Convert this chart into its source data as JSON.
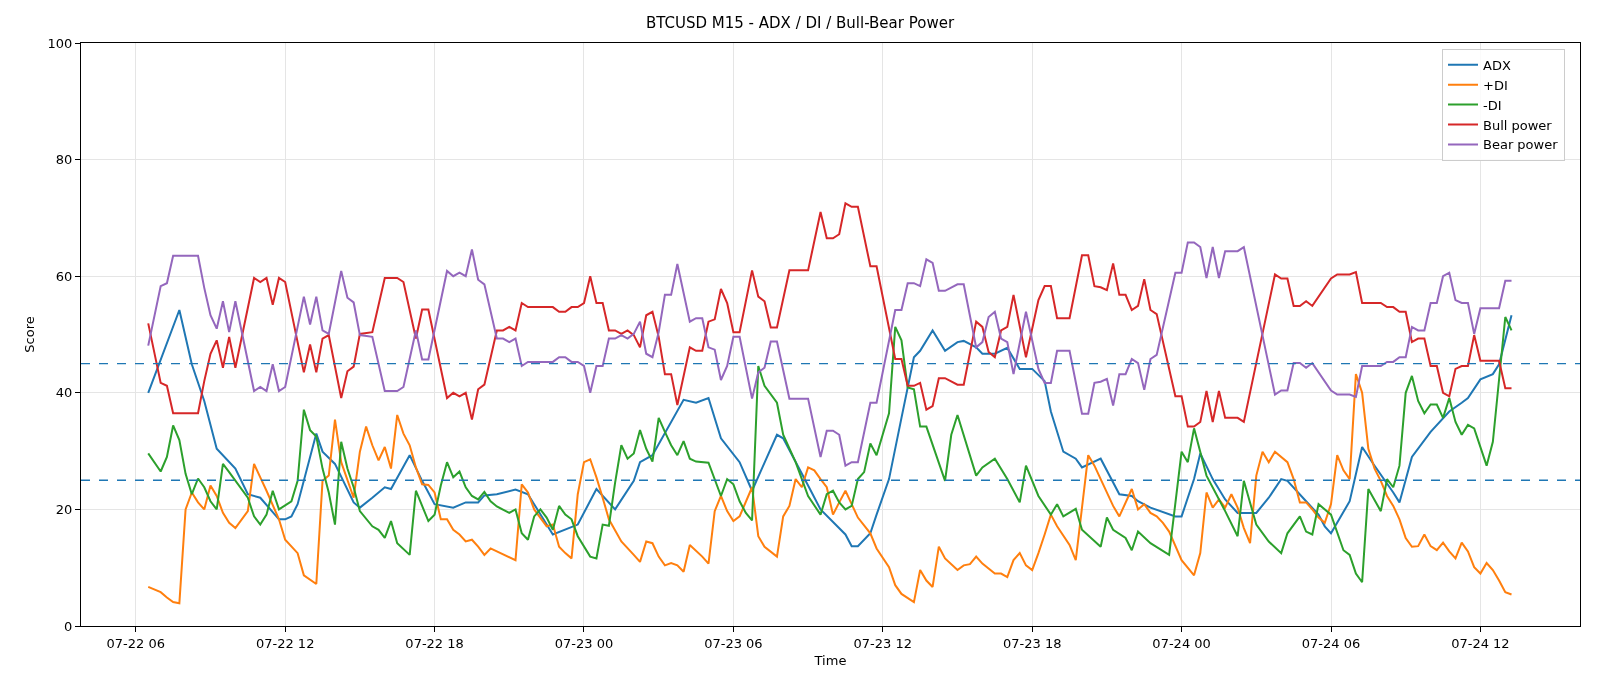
{
  "chart_data": {
    "type": "line",
    "title": "BTCUSD M15 - ADX / DI / Bull-Bear Power",
    "xlabel": "Time",
    "ylabel": "Score",
    "xlim": [
      "--07-22T03:48",
      "--07-24T16:00"
    ],
    "xticks": [
      {
        "value": "--07-22T06:00",
        "label": "07-22 06"
      },
      {
        "value": "--07-22T12:00",
        "label": "07-22 12"
      },
      {
        "value": "--07-22T18:00",
        "label": "07-22 18"
      },
      {
        "value": "--07-23T00:00",
        "label": "07-23 00"
      },
      {
        "value": "--07-23T06:00",
        "label": "07-23 06"
      },
      {
        "value": "--07-23T12:00",
        "label": "07-23 12"
      },
      {
        "value": "--07-23T18:00",
        "label": "07-23 18"
      },
      {
        "value": "--07-24T00:00",
        "label": "07-24 00"
      },
      {
        "value": "--07-24T06:00",
        "label": "07-24 06"
      },
      {
        "value": "--07-24T12:00",
        "label": "07-24 12"
      }
    ],
    "ylim": [
      0,
      100
    ],
    "yticks": [
      0,
      20,
      40,
      60,
      80,
      100
    ],
    "grid": true,
    "legend": "top right",
    "line_style": "solid",
    "ref_lines": [
      {
        "axis": "y",
        "value": 45,
        "color": "#1f77b4",
        "line_style": "dashed"
      },
      {
        "axis": "y",
        "value": 25,
        "color": "#1f77b4",
        "line_style": "dashed"
      }
    ],
    "x": [
      "--07-22T06:30",
      "--07-22T07:00",
      "--07-22T07:15",
      "--07-22T07:30",
      "--07-22T08:30",
      "--07-22T08:45",
      "--07-22T09:00",
      "--07-22T09:15",
      "--07-22T09:30",
      "--07-22T09:45",
      "--07-22T10:00",
      "--07-22T10:45",
      "--07-22T11:00",
      "--07-22T11:15",
      "--07-22T11:30",
      "--07-22T11:45",
      "--07-22T12:00",
      "--07-22T12:45",
      "--07-22T13:00",
      "--07-22T13:15",
      "--07-22T13:30",
      "--07-22T13:45",
      "--07-22T14:15",
      "--07-22T14:30",
      "--07-22T14:45",
      "--07-22T15:00",
      "--07-22T15:30",
      "--07-22T16:00",
      "--07-22T16:30",
      "--07-22T16:45",
      "--07-22T17:15",
      "--07-22T17:30",
      "--07-22T17:45",
      "--07-22T18:30",
      "--07-22T18:45",
      "--07-22T19:00",
      "--07-22T19:15",
      "--07-22T19:30",
      "--07-22T19:45",
      "--07-22T20:00",
      "--07-22T20:30",
      "--07-22T20:45",
      "--07-22T21:00",
      "--07-22T21:15",
      "--07-22T21:30",
      "--07-22T21:45",
      "--07-22T22:45",
      "--07-22T23:00",
      "--07-22T23:15",
      "--07-22T23:30",
      "--07-22T23:45",
      "--07-23T00:00",
      "--07-23T00:15",
      "--07-23T00:30",
      "--07-23T00:45",
      "--07-23T01:00",
      "--07-23T01:15",
      "--07-23T01:30",
      "--07-23T01:45",
      "--07-23T02:00",
      "--07-23T02:15",
      "--07-23T02:30",
      "--07-23T02:45",
      "--07-23T03:00",
      "--07-23T03:15",
      "--07-23T03:30",
      "--07-23T03:45",
      "--07-23T04:15",
      "--07-23T04:30",
      "--07-23T04:45",
      "--07-23T05:00",
      "--07-23T05:15",
      "--07-23T05:30",
      "--07-23T05:45",
      "--07-23T06:00",
      "--07-23T06:15",
      "--07-23T06:45",
      "--07-23T07:00",
      "--07-23T07:15",
      "--07-23T07:30",
      "--07-23T07:45",
      "--07-23T08:15",
      "--07-23T09:00",
      "--07-23T09:30",
      "--07-23T09:45",
      "--07-23T10:00",
      "--07-23T10:15",
      "--07-23T10:30",
      "--07-23T10:45",
      "--07-23T11:00",
      "--07-23T11:30",
      "--07-23T11:45",
      "--07-23T12:30",
      "--07-23T12:45",
      "--07-23T13:00",
      "--07-23T13:15",
      "--07-23T13:30",
      "--07-23T13:45",
      "--07-23T14:00",
      "--07-23T14:15",
      "--07-23T14:30",
      "--07-23T15:00",
      "--07-23T15:15",
      "--07-23T15:45",
      "--07-23T16:00",
      "--07-23T16:15",
      "--07-23T16:30",
      "--07-23T16:45",
      "--07-23T17:00",
      "--07-23T17:15",
      "--07-23T17:45",
      "--07-23T18:15",
      "--07-23T18:30",
      "--07-23T18:45",
      "--07-23T19:00",
      "--07-23T19:30",
      "--07-23T20:00",
      "--07-23T20:15",
      "--07-23T20:30",
      "--07-23T20:45",
      "--07-23T21:00",
      "--07-23T21:15",
      "--07-23T21:30",
      "--07-23T21:45",
      "--07-23T22:00",
      "--07-23T22:15",
      "--07-23T22:30",
      "--07-23T22:45",
      "--07-23T23:00",
      "--07-23T23:45",
      "--07-24T00:00",
      "--07-24T00:15",
      "--07-24T00:30",
      "--07-24T00:45",
      "--07-24T01:00",
      "--07-24T01:15",
      "--07-24T01:30",
      "--07-24T01:45",
      "--07-24T02:15",
      "--07-24T02:30",
      "--07-24T03:45",
      "--07-24T04:00",
      "--07-24T04:15",
      "--07-24T04:30",
      "--07-24T04:45",
      "--07-24T05:00",
      "--07-24T05:15",
      "--07-24T06:00",
      "--07-24T06:15",
      "--07-24T06:45",
      "--07-24T07:00",
      "--07-24T07:15",
      "--07-24T08:00",
      "--07-24T08:15",
      "--07-24T08:30",
      "--07-24T08:45",
      "--07-24T09:00",
      "--07-24T09:15",
      "--07-24T09:30",
      "--07-24T09:45",
      "--07-24T10:00",
      "--07-24T10:15",
      "--07-24T10:30",
      "--07-24T10:45",
      "--07-24T11:00",
      "--07-24T11:15",
      "--07-24T11:30",
      "--07-24T11:45",
      "--07-24T12:00",
      "--07-24T12:45",
      "--07-24T13:00",
      "--07-24T13:15"
    ],
    "series": [
      {
        "name": "ADX",
        "color": "#1f77b4",
        "x": [
          "--07-22T06:30",
          "--07-22T07:45",
          "--07-22T08:15",
          "--07-22T08:45",
          "--07-22T09:15",
          "--07-22T10:00",
          "--07-22T10:30",
          "--07-22T11:00",
          "--07-22T11:45",
          "--07-22T12:00",
          "--07-22T12:15",
          "--07-22T12:30",
          "--07-22T13:15",
          "--07-22T13:30",
          "--07-22T14:00",
          "--07-22T14:45",
          "--07-22T15:00",
          "--07-22T15:30",
          "--07-22T16:00",
          "--07-22T16:15",
          "--07-22T17:00",
          "--07-22T17:30",
          "--07-22T18:00",
          "--07-22T18:45",
          "--07-22T19:15",
          "--07-22T19:45",
          "--07-22T20:00",
          "--07-22T20:30",
          "--07-22T21:15",
          "--07-22T21:45",
          "--07-22T22:45",
          "--07-22T23:45",
          "--07-23T00:30",
          "--07-23T01:15",
          "--07-23T02:00",
          "--07-23T02:15",
          "--07-23T02:45",
          "--07-23T04:00",
          "--07-23T04:30",
          "--07-23T05:00",
          "--07-23T05:30",
          "--07-23T06:15",
          "--07-23T06:45",
          "--07-23T07:45",
          "--07-23T08:00",
          "--07-23T09:00",
          "--07-23T09:30",
          "--07-23T10:30",
          "--07-23T10:45",
          "--07-23T11:00",
          "--07-23T11:30",
          "--07-23T11:45",
          "--07-23T12:15",
          "--07-23T12:45",
          "--07-23T13:15",
          "--07-23T13:30",
          "--07-23T14:00",
          "--07-23T14:30",
          "--07-23T15:00",
          "--07-23T15:15",
          "--07-23T15:45",
          "--07-23T16:00",
          "--07-23T16:30",
          "--07-23T17:00",
          "--07-23T17:30",
          "--07-23T18:00",
          "--07-23T18:30",
          "--07-23T18:45",
          "--07-23T19:15",
          "--07-23T19:45",
          "--07-23T20:00",
          "--07-23T20:45",
          "--07-23T21:30",
          "--07-23T22:00",
          "--07-23T22:15",
          "--07-23T22:45",
          "--07-23T23:45",
          "--07-24T00:00",
          "--07-24T00:30",
          "--07-24T00:45",
          "--07-24T01:15",
          "--07-24T01:45",
          "--07-24T02:15",
          "--07-24T02:30",
          "--07-24T03:00",
          "--07-24T03:30",
          "--07-24T04:00",
          "--07-24T04:15",
          "--07-24T05:00",
          "--07-24T05:30",
          "--07-24T05:45",
          "--07-24T06:00",
          "--07-24T06:45",
          "--07-24T07:15",
          "--07-24T07:45",
          "--07-24T08:30",
          "--07-24T08:45",
          "--07-24T09:15",
          "--07-24T10:00",
          "--07-24T10:45",
          "--07-24T11:15",
          "--07-24T11:30",
          "--07-24T12:00",
          "--07-24T12:30",
          "--07-24T12:45",
          "--07-24T13:15"
        ],
        "values": [
          40,
          54.2,
          44.9,
          38.6,
          30.4,
          27,
          22.6,
          22,
          18.3,
          18.3,
          18.8,
          20.9,
          33,
          29.9,
          27.8,
          21.2,
          20.3,
          22,
          23.8,
          23.5,
          29.3,
          24.9,
          20.9,
          20.3,
          21.2,
          21.2,
          22.4,
          22.6,
          23.4,
          22.6,
          15.7,
          17.4,
          23.5,
          20,
          24.9,
          28.1,
          29.3,
          38.8,
          38.3,
          39.1,
          32.2,
          28.1,
          23.2,
          32.8,
          32.2,
          24.1,
          20,
          15.7,
          13.7,
          13.7,
          15.9,
          19.1,
          25.2,
          35.7,
          46.1,
          47.2,
          50.7,
          47.2,
          48.7,
          48.9,
          47.8,
          46.7,
          46.7,
          47.7,
          44.1,
          44.1,
          42,
          36.8,
          29.9,
          28.7,
          27.2,
          28.7,
          22.6,
          22.3,
          21.4,
          20.3,
          18.8,
          18.8,
          25.2,
          29.6,
          25.2,
          21.7,
          19.4,
          19.4,
          19.4,
          22,
          25.2,
          24.9,
          21.4,
          19.1,
          17.1,
          15.9,
          21.4,
          30.7,
          27.5,
          22.9,
          21.2,
          29,
          33.3,
          36.8,
          38.3,
          39.1,
          42.3,
          43.2,
          44.9,
          53.3
        ]
      },
      {
        "name": "+DI",
        "color": "#ff7f0e",
        "x": [
          "--07-22T06:30",
          "--07-22T07:00",
          "--07-22T07:15",
          "--07-22T07:30",
          "--07-22T07:45",
          "--07-22T08:00",
          "--07-22T08:15",
          "--07-22T08:30",
          "--07-22T08:45",
          "--07-22T09:00",
          "--07-22T09:15",
          "--07-22T09:30",
          "--07-22T09:45",
          "--07-22T10:00",
          "--07-22T10:30",
          "--07-22T10:45",
          "--07-22T11:00",
          "--07-22T11:15",
          "--07-22T11:45",
          "--07-22T12:00",
          "--07-22T12:30",
          "--07-22T12:45",
          "--07-22T13:15",
          "--07-22T13:30",
          "--07-22T13:45",
          "--07-22T14:00",
          "--07-22T14:15",
          "--07-22T14:45",
          "--07-22T15:00",
          "--07-22T15:15",
          "--07-22T15:30",
          "--07-22T15:45",
          "--07-22T16:00",
          "--07-22T16:15",
          "--07-22T16:30",
          "--07-22T16:45",
          "--07-22T17:00",
          "--07-22T17:15",
          "--07-22T17:30",
          "--07-22T17:45",
          "--07-22T18:00",
          "--07-22T18:15",
          "--07-22T18:30",
          "--07-22T18:45",
          "--07-22T19:00",
          "--07-22T19:15",
          "--07-22T19:30",
          "--07-22T19:45",
          "--07-22T20:00",
          "--07-22T20:15",
          "--07-22T20:30",
          "--07-22T21:15",
          "--07-22T21:30",
          "--07-22T21:45",
          "--07-22T22:00",
          "--07-22T22:30",
          "--07-22T22:45",
          "--07-22T23:00",
          "--07-22T23:15",
          "--07-22T23:30",
          "--07-22T23:45",
          "--07-23T00:00",
          "--07-23T00:15",
          "--07-23T00:30",
          "--07-23T00:45",
          "--07-23T01:00",
          "--07-23T01:30",
          "--07-23T02:00",
          "--07-23T02:15",
          "--07-23T02:30",
          "--07-23T02:45",
          "--07-23T03:00",
          "--07-23T03:15",
          "--07-23T03:30",
          "--07-23T03:45",
          "--07-23T04:00",
          "--07-23T04:15",
          "--07-23T04:45",
          "--07-23T05:00",
          "--07-23T05:15",
          "--07-23T05:30",
          "--07-23T05:45",
          "--07-23T06:00",
          "--07-23T06:15",
          "--07-23T06:45",
          "--07-23T07:00",
          "--07-23T07:15",
          "--07-23T07:45",
          "--07-23T08:00",
          "--07-23T08:15",
          "--07-23T08:30",
          "--07-23T08:45",
          "--07-23T09:00",
          "--07-23T09:15",
          "--07-23T09:30",
          "--07-23T09:45",
          "--07-23T10:00",
          "--07-23T10:15",
          "--07-23T10:30",
          "--07-23T10:45",
          "--07-23T11:00",
          "--07-23T11:30",
          "--07-23T11:45",
          "--07-23T12:15",
          "--07-23T12:30",
          "--07-23T12:45",
          "--07-23T13:15",
          "--07-23T13:30",
          "--07-23T13:45",
          "--07-23T14:00",
          "--07-23T14:15",
          "--07-23T14:30",
          "--07-23T15:00",
          "--07-23T15:15",
          "--07-23T15:30",
          "--07-23T15:45",
          "--07-23T16:00",
          "--07-23T16:30",
          "--07-23T16:45",
          "--07-23T17:00",
          "--07-23T17:15",
          "--07-23T17:30",
          "--07-23T17:45",
          "--07-23T18:00",
          "--07-23T18:15",
          "--07-23T18:30",
          "--07-23T18:45",
          "--07-23T19:00",
          "--07-23T19:30",
          "--07-23T19:45",
          "--07-23T20:15",
          "--07-23T20:30",
          "--07-23T20:45",
          "--07-23T21:15",
          "--07-23T21:30",
          "--07-23T22:00",
          "--07-23T22:15",
          "--07-23T22:30",
          "--07-23T22:45",
          "--07-23T23:00",
          "--07-23T23:15",
          "--07-23T23:30",
          "--07-24T00:00",
          "--07-24T00:30",
          "--07-24T00:45",
          "--07-24T01:00",
          "--07-24T01:15",
          "--07-24T01:30",
          "--07-24T01:45",
          "--07-24T02:00",
          "--07-24T02:15",
          "--07-24T02:30",
          "--07-24T02:45",
          "--07-24T03:00",
          "--07-24T03:15",
          "--07-24T03:30",
          "--07-24T03:45",
          "--07-24T04:15",
          "--07-24T04:30",
          "--07-24T04:45",
          "--07-24T05:00",
          "--07-24T05:15",
          "--07-24T05:30",
          "--07-24T05:45",
          "--07-24T06:00",
          "--07-24T06:15",
          "--07-24T06:30",
          "--07-24T06:45",
          "--07-24T07:00",
          "--07-24T07:15",
          "--07-24T07:30",
          "--07-24T07:45",
          "--07-24T08:00",
          "--07-24T08:15",
          "--07-24T08:30",
          "--07-24T08:45",
          "--07-24T09:00",
          "--07-24T09:15",
          "--07-24T09:30",
          "--07-24T09:45",
          "--07-24T10:00",
          "--07-24T10:15",
          "--07-24T10:30",
          "--07-24T10:45",
          "--07-24T11:00",
          "--07-24T11:15",
          "--07-24T11:30",
          "--07-24T11:45",
          "--07-24T12:00",
          "--07-24T12:15",
          "--07-24T12:30",
          "--07-24T12:45",
          "--07-24T13:00",
          "--07-24T13:15"
        ],
        "values": [
          6.7,
          5.8,
          4.9,
          4.1,
          3.9,
          20,
          22.9,
          21.2,
          20,
          24.1,
          22.3,
          19.4,
          17.7,
          16.8,
          19.7,
          27.8,
          25.5,
          23.2,
          18.3,
          14.8,
          12.5,
          8.7,
          7.2,
          24.9,
          25.8,
          35.4,
          28.1,
          22,
          29.9,
          34.2,
          31,
          28.4,
          30.7,
          27,
          36.2,
          33,
          31,
          27.2,
          24.3,
          24.2,
          22.9,
          18.3,
          18.3,
          16.5,
          15.7,
          14.5,
          14.8,
          13.6,
          12.2,
          13.3,
          12.8,
          11.3,
          24.3,
          22.9,
          20,
          17.1,
          17.4,
          13.6,
          12.5,
          11.6,
          22.6,
          28.1,
          28.6,
          25.5,
          22,
          18.3,
          14.5,
          12.2,
          11,
          14.5,
          14.2,
          11.9,
          10.4,
          10.8,
          10.4,
          9.3,
          13.9,
          11.9,
          10.7,
          19.7,
          22.3,
          19.7,
          18,
          18.8,
          23.8,
          15.4,
          13.6,
          11.9,
          18.8,
          20.6,
          25.2,
          23.8,
          27.2,
          26.7,
          25.2,
          23.8,
          19.1,
          21.2,
          23.2,
          20.9,
          18.6,
          15.9,
          13.3,
          10.1,
          7,
          5.5,
          4.1,
          9.6,
          7.8,
          6.7,
          13.6,
          11.6,
          9.6,
          10.4,
          10.6,
          11.9,
          10.7,
          9,
          9,
          8.4,
          11.3,
          12.5,
          10.4,
          9.6,
          12.5,
          15.7,
          19.1,
          17.1,
          13.9,
          11.3,
          29.3,
          27.5,
          25.2,
          20.6,
          18.8,
          23.5,
          20,
          20.9,
          19.4,
          18.8,
          17.7,
          16.2,
          11.3,
          8.7,
          12.5,
          22.9,
          20.3,
          21.7,
          20.3,
          22.6,
          20.3,
          16.8,
          14.2,
          25.8,
          29.9,
          28.1,
          29.9,
          28.1,
          25.2,
          21.2,
          21.2,
          20,
          18.6,
          17.7,
          20.9,
          29.3,
          26.7,
          25.2,
          43.2,
          40,
          30.4,
          27,
          24.9,
          22.3,
          20.6,
          18.3,
          15.1,
          13.6,
          13.7,
          15.7,
          13.7,
          13,
          14.3,
          12.8,
          11.6,
          14.3,
          12.8,
          10.1,
          9,
          10.8,
          9.6,
          7.8,
          5.8,
          5.4
        ]
      },
      {
        "name": "-DI",
        "color": "#2ca02c",
        "x": [
          "--07-22T06:30",
          "--07-22T07:00",
          "--07-22T07:15",
          "--07-22T07:30",
          "--07-22T07:45",
          "--07-22T08:00",
          "--07-22T08:15",
          "--07-22T08:30",
          "--07-22T08:45",
          "--07-22T09:00",
          "--07-22T09:15",
          "--07-22T09:30",
          "--07-22T09:45",
          "--07-22T10:30",
          "--07-22T10:45",
          "--07-22T11:00",
          "--07-22T11:15",
          "--07-22T11:30",
          "--07-22T11:45",
          "--07-22T12:15",
          "--07-22T12:30",
          "--07-22T12:45",
          "--07-22T13:00",
          "--07-22T13:15",
          "--07-22T13:30",
          "--07-22T13:45",
          "--07-22T14:00",
          "--07-22T14:15",
          "--07-22T14:30",
          "--07-22T14:45",
          "--07-22T15:00",
          "--07-22T15:30",
          "--07-22T15:45",
          "--07-22T16:00",
          "--07-22T16:15",
          "--07-22T16:30",
          "--07-22T17:00",
          "--07-22T17:15",
          "--07-22T17:45",
          "--07-22T18:00",
          "--07-22T18:15",
          "--07-22T18:30",
          "--07-22T18:45",
          "--07-22T19:00",
          "--07-22T19:15",
          "--07-22T19:30",
          "--07-22T19:45",
          "--07-22T20:00",
          "--07-22T20:15",
          "--07-22T20:30",
          "--07-22T21:00",
          "--07-22T21:15",
          "--07-22T21:30",
          "--07-22T21:45",
          "--07-22T22:00",
          "--07-22T22:15",
          "--07-22T22:30",
          "--07-22T22:45",
          "--07-22T23:00",
          "--07-22T23:15",
          "--07-22T23:30",
          "--07-22T23:45",
          "--07-23T00:15",
          "--07-23T00:30",
          "--07-23T00:45",
          "--07-23T01:00",
          "--07-23T01:15",
          "--07-23T01:30",
          "--07-23T01:45",
          "--07-23T02:00",
          "--07-23T02:15",
          "--07-23T02:30",
          "--07-23T02:45",
          "--07-23T03:00",
          "--07-23T03:15",
          "--07-23T03:30",
          "--07-23T03:45",
          "--07-23T04:00",
          "--07-23T04:15",
          "--07-23T04:30",
          "--07-23T05:00",
          "--07-23T05:30",
          "--07-23T05:45",
          "--07-23T06:00",
          "--07-23T06:15",
          "--07-23T06:30",
          "--07-23T06:45",
          "--07-23T07:00",
          "--07-23T07:15",
          "--07-23T07:45",
          "--07-23T08:00",
          "--07-23T08:30",
          "--07-23T08:45",
          "--07-23T09:00",
          "--07-23T09:30",
          "--07-23T09:45",
          "--07-23T10:00",
          "--07-23T10:15",
          "--07-23T10:30",
          "--07-23T10:45",
          "--07-23T11:00",
          "--07-23T11:15",
          "--07-23T11:30",
          "--07-23T11:45",
          "--07-23T12:15",
          "--07-23T12:30",
          "--07-23T12:45",
          "--07-23T13:00",
          "--07-23T13:15",
          "--07-23T13:30",
          "--07-23T13:45",
          "--07-23T14:30",
          "--07-23T14:45",
          "--07-23T15:00",
          "--07-23T15:45",
          "--07-23T16:00",
          "--07-23T16:30",
          "--07-23T17:00",
          "--07-23T17:30",
          "--07-23T17:45",
          "--07-23T18:15",
          "--07-23T18:45",
          "--07-23T19:00",
          "--07-23T19:15",
          "--07-23T19:45",
          "--07-23T20:00",
          "--07-23T20:45",
          "--07-23T21:00",
          "--07-23T21:15",
          "--07-23T21:45",
          "--07-23T22:00",
          "--07-23T22:15",
          "--07-23T22:45",
          "--07-23T23:30",
          "--07-24T00:00",
          "--07-24T00:15",
          "--07-24T00:30",
          "--07-24T01:00",
          "--07-24T01:45",
          "--07-24T02:15",
          "--07-24T02:30",
          "--07-24T03:00",
          "--07-24T03:30",
          "--07-24T04:00",
          "--07-24T04:15",
          "--07-24T04:45",
          "--07-24T05:00",
          "--07-24T05:15",
          "--07-24T05:30",
          "--07-24T06:00",
          "--07-24T06:30",
          "--07-24T06:45",
          "--07-24T07:00",
          "--07-24T07:15",
          "--07-24T07:30",
          "--07-24T08:00",
          "--07-24T08:15",
          "--07-24T08:30",
          "--07-24T08:45",
          "--07-24T09:00",
          "--07-24T09:15",
          "--07-24T09:30",
          "--07-24T09:45",
          "--07-24T10:00",
          "--07-24T10:15",
          "--07-24T10:30",
          "--07-24T10:45",
          "--07-24T11:00",
          "--07-24T11:15",
          "--07-24T11:30",
          "--07-24T11:45",
          "--07-24T12:15",
          "--07-24T12:30",
          "--07-24T13:00",
          "--07-24T13:15"
        ],
        "values": [
          29.6,
          26.5,
          29,
          34.4,
          31.9,
          26.1,
          22.6,
          25.3,
          23.8,
          21.4,
          20,
          27.8,
          26.4,
          22,
          18.8,
          17.4,
          19.1,
          23.2,
          20,
          21.4,
          24.9,
          37.1,
          33.6,
          32.5,
          27,
          22.9,
          17.4,
          31.6,
          27,
          23.8,
          19.7,
          17.1,
          16.5,
          15.1,
          18,
          14.2,
          12.2,
          23.2,
          18,
          19.1,
          24.1,
          28.1,
          25.5,
          26.5,
          23.8,
          22.3,
          21.7,
          23,
          21.4,
          20.5,
          19.4,
          20,
          15.9,
          14.8,
          18.8,
          20,
          18.6,
          16.5,
          20.6,
          19.1,
          18.3,
          15.4,
          11.9,
          11.6,
          17.4,
          17.2,
          24.6,
          31,
          28.7,
          29.6,
          33.6,
          30.4,
          28.2,
          35.7,
          33.3,
          31,
          29.3,
          31.7,
          28.7,
          28.2,
          28,
          22.3,
          25.2,
          24.3,
          21.4,
          19.4,
          18.1,
          44.6,
          41.2,
          38.3,
          32.8,
          28.1,
          25.2,
          22.3,
          19.1,
          22.6,
          23.2,
          21.2,
          20,
          20.6,
          25.2,
          26.4,
          31.3,
          29.3,
          36.5,
          51.3,
          49,
          40.9,
          40.6,
          34.2,
          34.2,
          24.9,
          32.8,
          36.2,
          25.8,
          27.2,
          28.7,
          25.2,
          21.2,
          27.5,
          22.3,
          19.1,
          20.9,
          18.8,
          20.1,
          16.5,
          13.6,
          18.6,
          16.5,
          15.1,
          13,
          16.2,
          14.2,
          12.2,
          29.9,
          28.1,
          33.9,
          25.8,
          19.7,
          15.4,
          24.9,
          17.4,
          14.5,
          12.5,
          15.9,
          18.8,
          16.2,
          15.7,
          20.9,
          19.1,
          13,
          12.2,
          9,
          7.5,
          23.5,
          19.7,
          25.2,
          23.8,
          27.5,
          40,
          42.9,
          38.6,
          36.5,
          38,
          38,
          35.7,
          39.1,
          35,
          32.8,
          34.5,
          33.9,
          27.5,
          31.6,
          53,
          50.7
        ]
      },
      {
        "name": "Bull power",
        "color": "#d62728",
        "values": [
          51.9,
          41.7,
          41.2,
          36.5,
          36.5,
          42,
          46.7,
          49,
          44.3,
          49.6,
          44.3,
          59.7,
          59,
          59.7,
          55.1,
          59.7,
          59,
          43.5,
          48.3,
          43.5,
          49.3,
          49.9,
          39.1,
          43.7,
          44.5,
          50.1,
          50.4,
          59.7,
          59.7,
          59,
          49.3,
          54.3,
          54.3,
          39.1,
          40,
          39.4,
          40,
          35.4,
          40.6,
          41.4,
          50.7,
          50.7,
          51.3,
          50.7,
          55.4,
          54.7,
          54.7,
          53.9,
          53.9,
          54.7,
          54.7,
          55.4,
          60,
          55.4,
          55.4,
          50.7,
          50.7,
          50.1,
          50.7,
          49.9,
          47.8,
          53.3,
          53.9,
          49.6,
          43.2,
          43.2,
          37.9,
          47.8,
          47.2,
          47.2,
          52.2,
          52.6,
          57.8,
          55.4,
          50.4,
          50.4,
          61,
          56.5,
          55.7,
          51.2,
          51.2,
          61,
          61,
          71,
          66.5,
          66.5,
          67.2,
          72.5,
          71.9,
          71.9,
          61.7,
          61.7,
          45.8,
          45.8,
          41.2,
          41.2,
          41.7,
          37.1,
          37.7,
          42.5,
          42.5,
          41.4,
          41.4,
          52.2,
          51.3,
          47,
          46.1,
          50.7,
          51.3,
          56.8,
          46.1,
          55.9,
          58.3,
          58.3,
          52.8,
          52.8,
          63.6,
          63.6,
          58.3,
          58.1,
          57.6,
          62.2,
          56.8,
          56.8,
          54.2,
          54.9,
          59.5,
          54.2,
          53.5,
          39.4,
          39.4,
          34.2,
          34.2,
          35,
          40.3,
          35,
          40.3,
          35.7,
          35.7,
          35,
          60.3,
          59.6,
          59.6,
          54.9,
          54.9,
          55.7,
          54.9,
          59.6,
          60.3,
          60.3,
          60.7,
          55.4,
          55.4,
          54.7,
          54.7,
          53.9,
          53.9,
          48.7,
          49.3,
          49.3,
          44.6,
          44.6,
          40,
          39.4,
          44.1,
          44.6,
          44.6,
          49.9,
          45.5,
          45.5,
          40.8,
          40.8
        ]
      },
      {
        "name": "Bear power",
        "color": "#9467bd",
        "values": [
          48.1,
          58.3,
          58.8,
          63.5,
          63.5,
          58,
          53.3,
          51,
          55.7,
          50.4,
          55.7,
          40.3,
          41,
          40.3,
          44.9,
          40.3,
          41,
          56.5,
          51.7,
          56.5,
          50.7,
          50.1,
          60.9,
          56.3,
          55.5,
          49.9,
          49.6,
          40.3,
          40.3,
          41,
          50.7,
          45.7,
          45.7,
          60.9,
          60,
          60.6,
          60,
          64.6,
          59.4,
          58.6,
          49.3,
          49.3,
          48.7,
          49.3,
          44.6,
          45.3,
          45.3,
          46.1,
          46.1,
          45.3,
          45.3,
          44.6,
          40,
          44.6,
          44.6,
          49.3,
          49.3,
          49.9,
          49.3,
          50.1,
          52.2,
          46.7,
          46.1,
          50.4,
          56.8,
          56.8,
          62.1,
          52.2,
          52.8,
          52.8,
          47.8,
          47.4,
          42.2,
          44.6,
          49.6,
          49.6,
          39,
          43.5,
          44.3,
          48.8,
          48.8,
          39,
          39,
          29,
          33.5,
          33.5,
          32.8,
          27.5,
          28.1,
          28.1,
          38.3,
          38.3,
          54.2,
          54.2,
          58.8,
          58.8,
          58.3,
          62.9,
          62.3,
          57.5,
          57.5,
          58.6,
          58.6,
          47.8,
          48.7,
          53,
          53.9,
          49.3,
          48.7,
          43.2,
          53.9,
          44.1,
          41.7,
          41.7,
          47.2,
          47.2,
          36.4,
          36.4,
          41.7,
          41.9,
          42.4,
          37.8,
          43.2,
          43.2,
          45.8,
          45.1,
          40.5,
          45.8,
          46.5,
          60.6,
          60.6,
          65.8,
          65.8,
          65,
          59.7,
          65,
          59.7,
          64.3,
          64.3,
          65,
          39.7,
          40.4,
          40.4,
          45.1,
          45.1,
          44.3,
          45.1,
          40.4,
          39.7,
          39.7,
          39.3,
          44.6,
          44.6,
          45.3,
          45.3,
          46.1,
          46.1,
          51.3,
          50.7,
          50.7,
          55.4,
          55.4,
          60,
          60.6,
          55.9,
          55.4,
          55.4,
          50.1,
          54.5,
          54.5,
          59.2,
          59.2
        ]
      }
    ]
  }
}
